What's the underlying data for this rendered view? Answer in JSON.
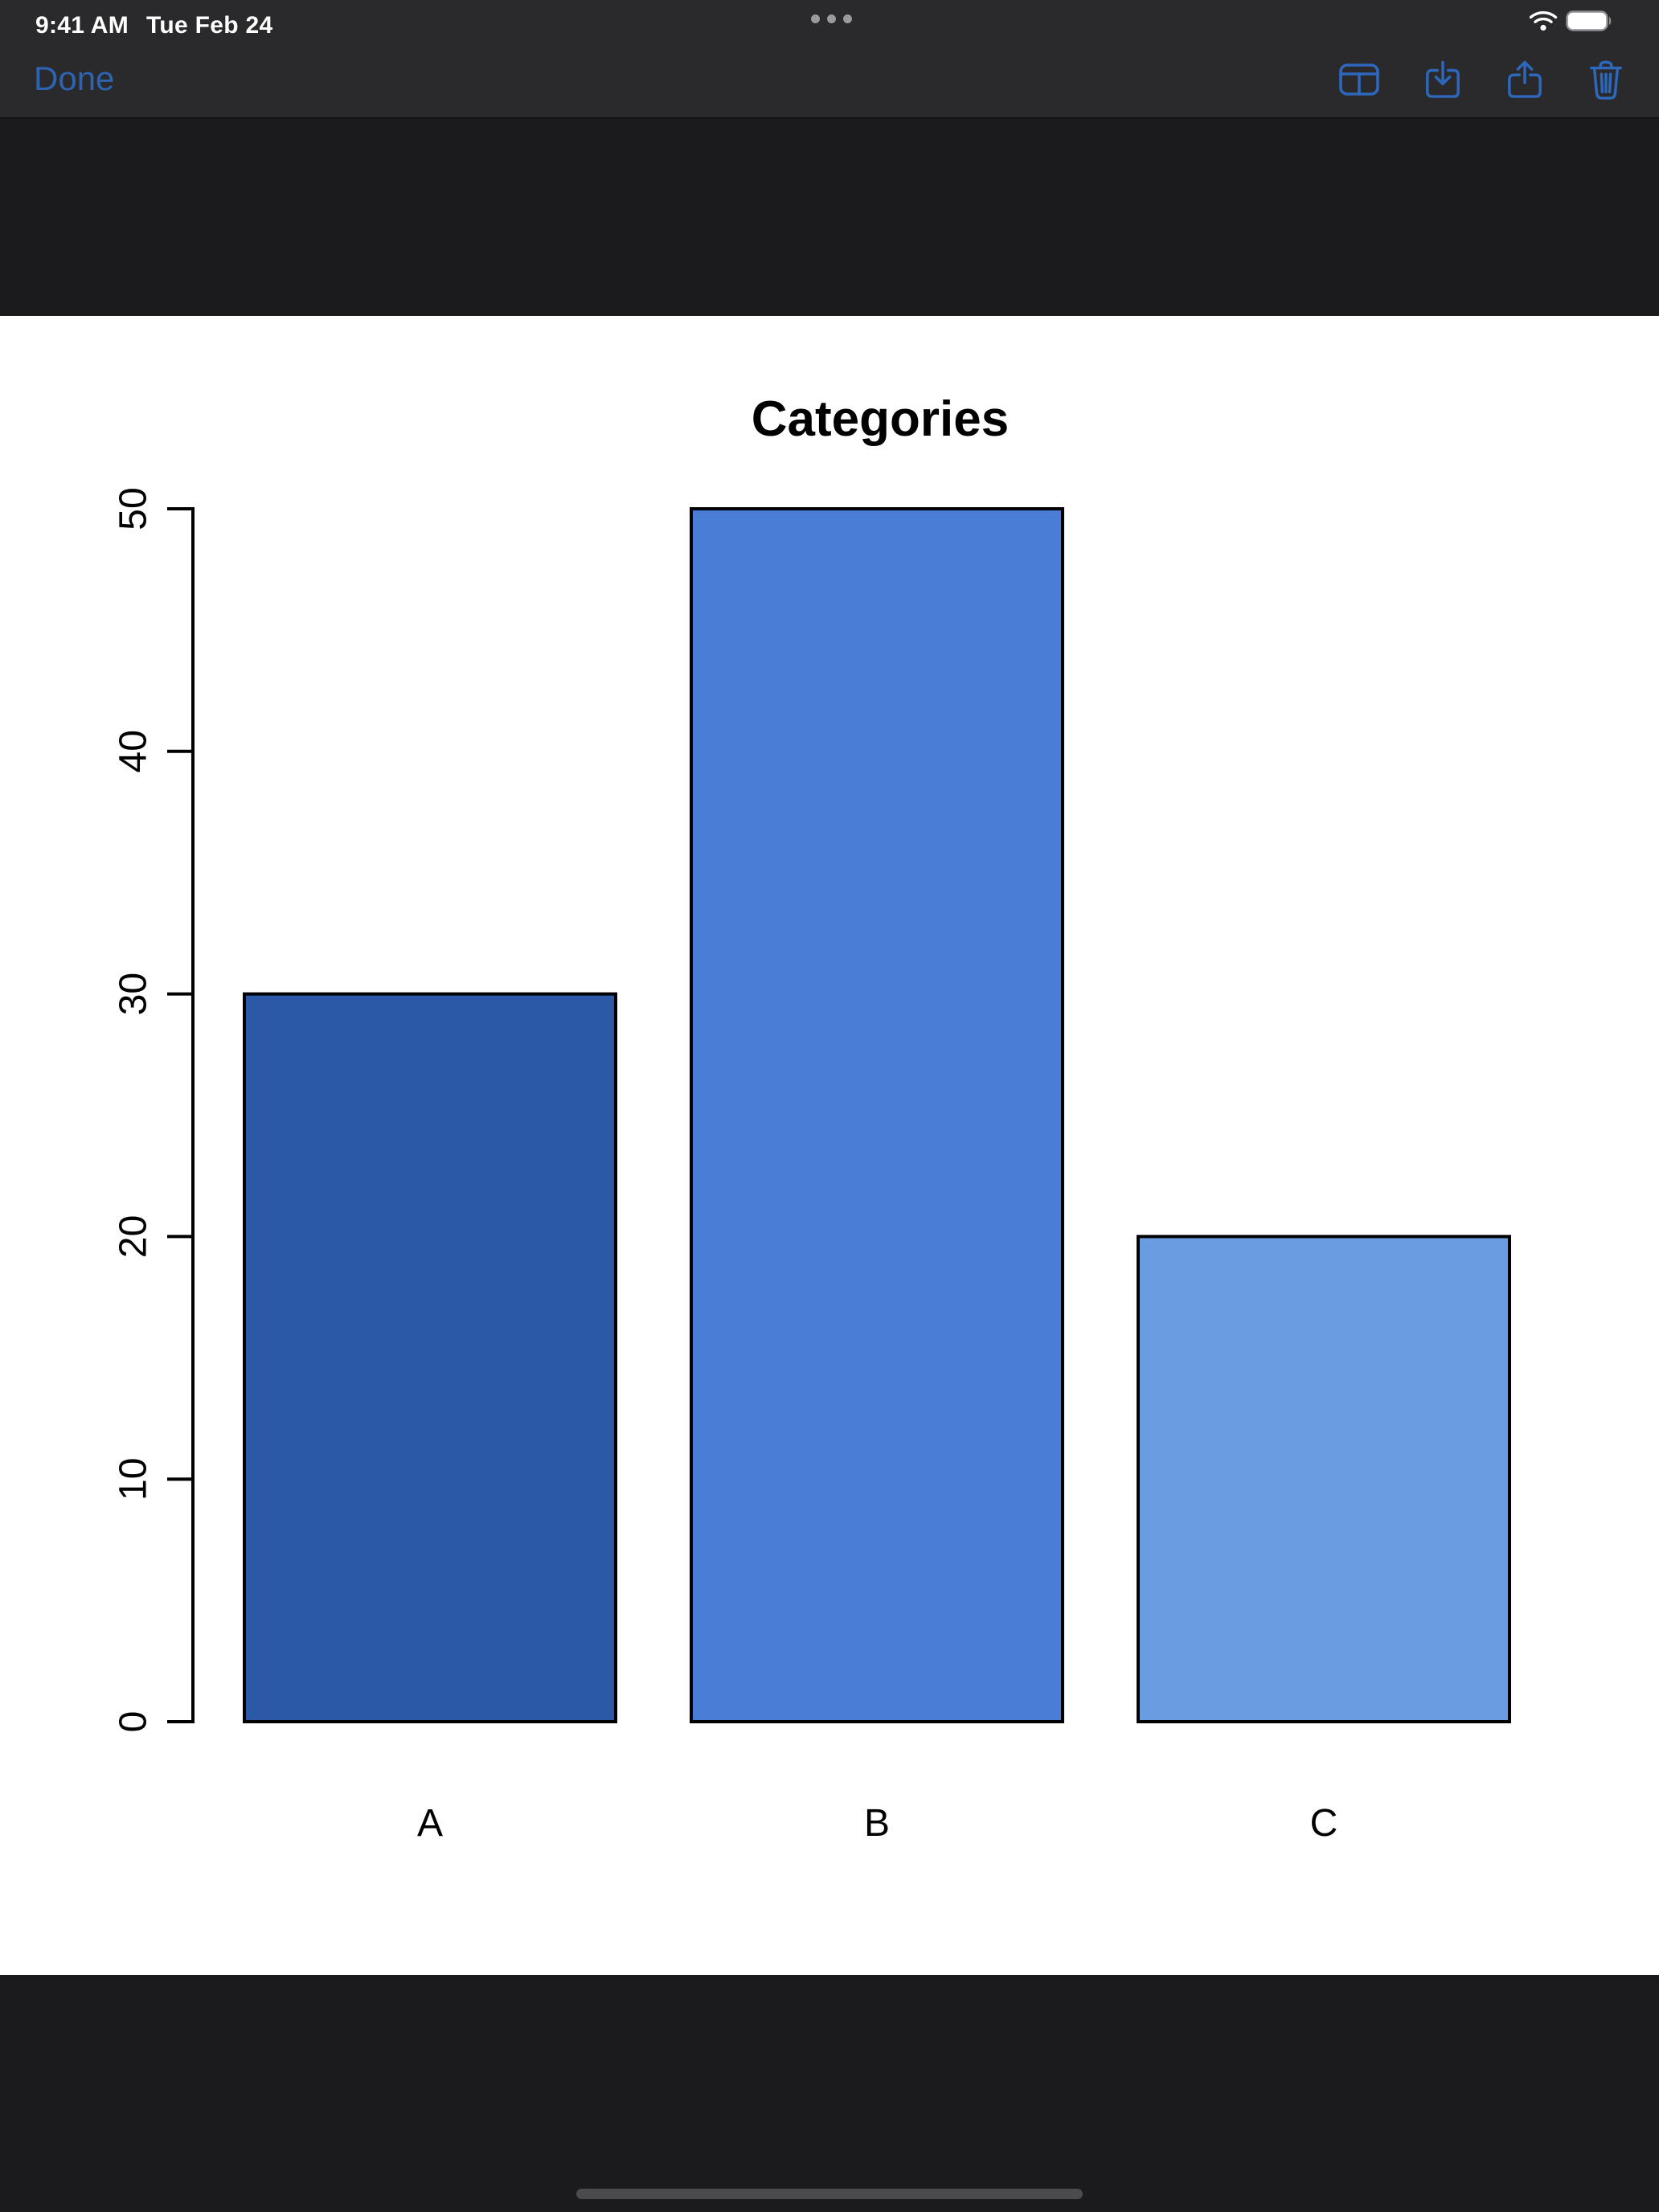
{
  "status_bar": {
    "time": "9:41 AM",
    "date": "Tue Feb 24",
    "icons": [
      "multitasking-ellipsis-icon",
      "wifi-icon",
      "battery-full-icon"
    ]
  },
  "nav_bar": {
    "done_label": "Done",
    "accent_color": "#2D68BD",
    "icons": [
      "markup-layout-icon",
      "download-icon",
      "share-icon",
      "trash-icon"
    ]
  },
  "chart_data": {
    "type": "bar",
    "title": "Categories",
    "categories": [
      "A",
      "B",
      "C"
    ],
    "values": [
      30,
      50,
      20
    ],
    "bar_colors": [
      "#2B59A8",
      "#4A7ED6",
      "#699CE0"
    ],
    "bar_border_color": "#000000",
    "xlabel": "",
    "ylabel": "",
    "ylim": [
      0,
      50
    ],
    "yticks": [
      0,
      10,
      20,
      30,
      40,
      50
    ],
    "grid": false,
    "legend": null,
    "background": "#FFFFFF"
  },
  "colors": {
    "chrome_background": "#2A2A2C",
    "screen_background": "#1B1B1D"
  }
}
